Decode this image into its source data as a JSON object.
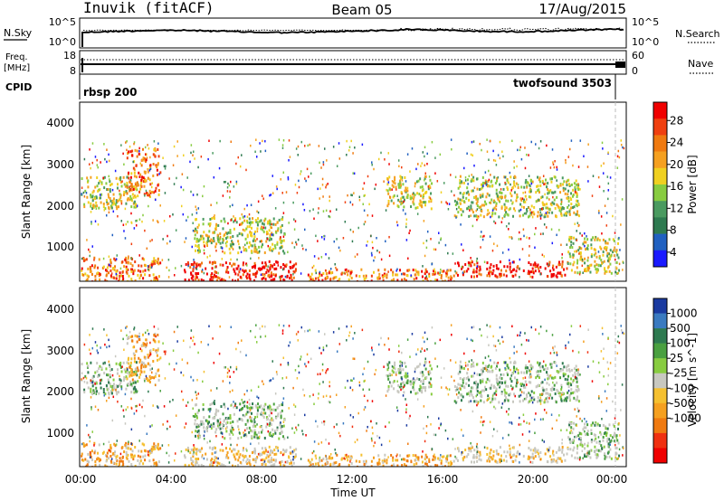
{
  "header": {
    "station": "Inuvik (fitACF)",
    "beam": "Beam 05",
    "date": "17/Aug/2015"
  },
  "summary": {
    "nsky_label": "N.Sky",
    "nsky_ticks": [
      "10^5",
      "10^0"
    ],
    "nsearch_label": "N.Search",
    "nsearch_ticks": [
      "10^5",
      "10^0"
    ],
    "freq_label_1": "Freq.",
    "freq_label_2": "[MHz]",
    "freq_ticks": [
      "18",
      "8"
    ],
    "nave_label": "Nave",
    "nave_ticks": [
      "60",
      "0"
    ],
    "cpid_label": "CPID",
    "cpid_left": "rbsp 200",
    "cpid_right": "twofsound 3503"
  },
  "power_panel": {
    "ylabel": "Slant Range [km]",
    "yticks": [
      "4000",
      "3000",
      "2000",
      "1000"
    ],
    "colorbar_label": "Power [dB]",
    "colorbar_ticks": [
      "28",
      "24",
      "20",
      "16",
      "12",
      "8",
      "4"
    ],
    "colors": [
      "#1a1aff",
      "#2060c0",
      "#2e7a50",
      "#4a9a60",
      "#88cc40",
      "#f0d020",
      "#f5a020",
      "#f07a10",
      "#f04010",
      "#f00000"
    ]
  },
  "velocity_panel": {
    "ylabel": "Slant Range [km]",
    "yticks": [
      "4000",
      "3000",
      "2000",
      "1000"
    ],
    "colorbar_label": "Velocity [m s^-1]",
    "colorbar_ticks": [
      "1000",
      "500",
      "100",
      "25",
      "-25",
      "-100",
      "-500",
      "-1000"
    ],
    "colors": [
      "#1a3aa0",
      "#3a7ac0",
      "#2e7a50",
      "#4aa040",
      "#88cc40",
      "#c8c8c0",
      "#f5c030",
      "#f5a020",
      "#f07a10",
      "#f03010",
      "#f00000"
    ]
  },
  "xaxis": {
    "ticks": [
      "00:00",
      "04:00",
      "08:00",
      "12:00",
      "16:00",
      "20:00",
      "00:00"
    ],
    "label": "Time UT"
  },
  "chart_data": {
    "type": "heatmap",
    "title": "Inuvik (fitACF) Beam 05 17/Aug/2015",
    "xlabel": "Time UT",
    "ylabel": "Slant Range [km]",
    "xlim_hours": [
      0,
      24
    ],
    "ylim_km": [
      180,
      4600
    ],
    "scatter_regions_power": [
      {
        "t": [
          0.0,
          3.5
        ],
        "r": [
          180,
          800
        ],
        "level": "high"
      },
      {
        "t": [
          4.5,
          9.5
        ],
        "r": [
          180,
          700
        ],
        "level": "very-high"
      },
      {
        "t": [
          10.0,
          16.5
        ],
        "r": [
          180,
          500
        ],
        "level": "high"
      },
      {
        "t": [
          16.5,
          21.5
        ],
        "r": [
          300,
          700
        ],
        "level": "very-high"
      },
      {
        "t": [
          21.5,
          23.8
        ],
        "r": [
          400,
          1300
        ],
        "level": "medium"
      },
      {
        "t": [
          0.0,
          2.5
        ],
        "r": [
          2000,
          2800
        ],
        "level": "medium"
      },
      {
        "t": [
          2.0,
          3.5
        ],
        "r": [
          2300,
          3500
        ],
        "level": "high"
      },
      {
        "t": [
          13.5,
          15.5
        ],
        "r": [
          2000,
          2800
        ],
        "level": "medium"
      },
      {
        "t": [
          16.5,
          22.0
        ],
        "r": [
          1800,
          2800
        ],
        "level": "medium"
      },
      {
        "t": [
          5.0,
          9.0
        ],
        "r": [
          900,
          1800
        ],
        "level": "medium"
      }
    ]
  }
}
